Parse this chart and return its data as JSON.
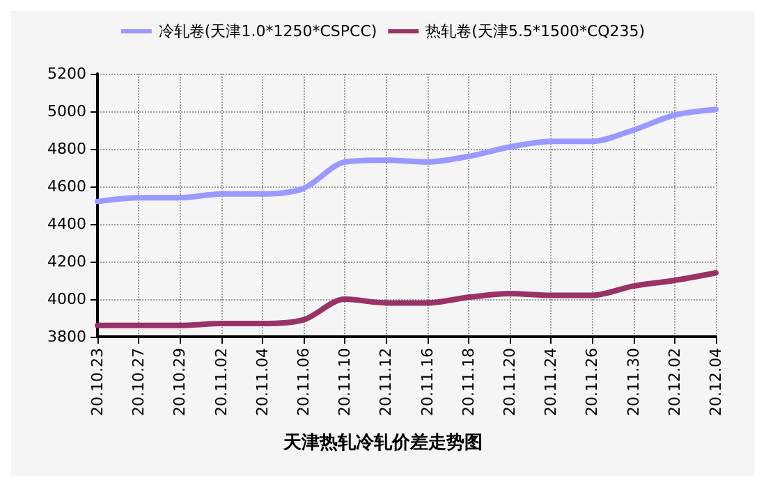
{
  "chart_data": {
    "type": "line",
    "title": "天津热轧冷轧价差走势图",
    "categories": [
      "20.10.23",
      "20.10.27",
      "20.10.29",
      "20.11.02",
      "20.11.04",
      "20.11.06",
      "20.11.10",
      "20.11.12",
      "20.11.16",
      "20.11.18",
      "20.11.20",
      "20.11.24",
      "20.11.26",
      "20.11.30",
      "20.12.02",
      "20.12.04"
    ],
    "series": [
      {
        "name": "冷轧卷(天津1.0*1250*CSPCC)",
        "color": "#9999ff",
        "values": [
          4520,
          4540,
          4540,
          4560,
          4560,
          4590,
          4730,
          4740,
          4730,
          4760,
          4810,
          4840,
          4840,
          4900,
          4980,
          5010
        ]
      },
      {
        "name": "热轧卷(天津5.5*1500*CQ235)",
        "color": "#993366",
        "values": [
          3860,
          3860,
          3860,
          3870,
          3870,
          3890,
          4000,
          3980,
          3980,
          4010,
          4030,
          4020,
          4020,
          4070,
          4100,
          4140
        ]
      }
    ],
    "ylim": [
      3800,
      5200
    ],
    "yticks": [
      3800,
      4000,
      4200,
      4400,
      4600,
      4800,
      5000,
      5200
    ],
    "grid": true,
    "legend": "top",
    "marker": "none",
    "line_style": "solid"
  }
}
